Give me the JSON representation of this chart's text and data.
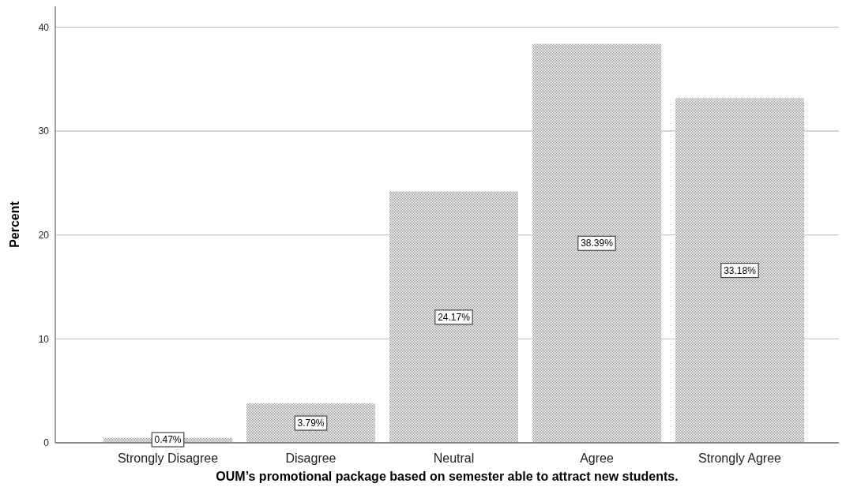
{
  "chart_data": {
    "type": "bar",
    "xlabel": "OUM’s promotional package based on semester able to attract new students.",
    "ylabel": "Percent",
    "categories": [
      "Strongly Disagree",
      "Disagree",
      "Neutral",
      "Agree",
      "Strongly Agree"
    ],
    "values": [
      0.47,
      3.79,
      24.17,
      38.39,
      33.18
    ],
    "value_labels": [
      "0.47%",
      "3.79%",
      "24.17%",
      "38.39%",
      "33.18%"
    ],
    "color": "#a0a0a0",
    "ylim": [
      0,
      42
    ],
    "yticks": [
      0,
      10,
      20,
      30,
      40
    ],
    "grid": "y"
  }
}
